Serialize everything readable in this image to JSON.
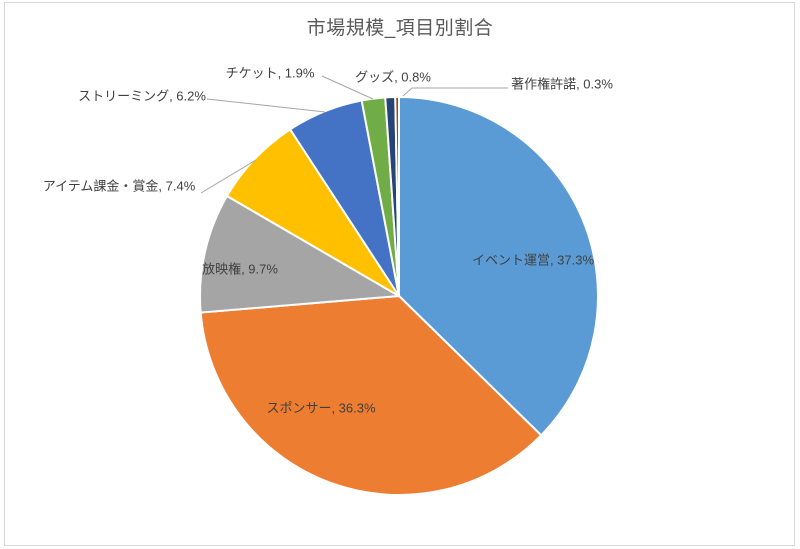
{
  "chart_data": {
    "type": "pie",
    "title": "市場規模_項目別割合",
    "legend": "none",
    "start_angle_deg": 0,
    "direction": "clockwise",
    "label_format": "name, value%",
    "slices": [
      {
        "label": "イベント運営",
        "value": 37.3,
        "color": "#5B9BD5",
        "label_placement": "inside"
      },
      {
        "label": "スポンサー",
        "value": 36.3,
        "color": "#ED7D31",
        "label_placement": "inside"
      },
      {
        "label": "放映権",
        "value": 9.7,
        "color": "#A5A5A5",
        "label_placement": "inside"
      },
      {
        "label": "アイテム課金・賞金",
        "value": 7.4,
        "color": "#FFC000",
        "label_placement": "outside"
      },
      {
        "label": "ストリーミング",
        "value": 6.2,
        "color": "#4472C4",
        "label_placement": "outside"
      },
      {
        "label": "チケット",
        "value": 1.9,
        "color": "#70AD47",
        "label_placement": "outside"
      },
      {
        "label": "グッズ",
        "value": 0.8,
        "color": "#264478",
        "label_placement": "outside"
      },
      {
        "label": "著作権許諾",
        "value": 0.3,
        "color": "#9E480E",
        "label_placement": "outside"
      }
    ],
    "label_text_color": "#404040",
    "title_color": "#595959",
    "leader_line_color": "#A6A6A6",
    "slice_border_color": "#FFFFFF"
  }
}
